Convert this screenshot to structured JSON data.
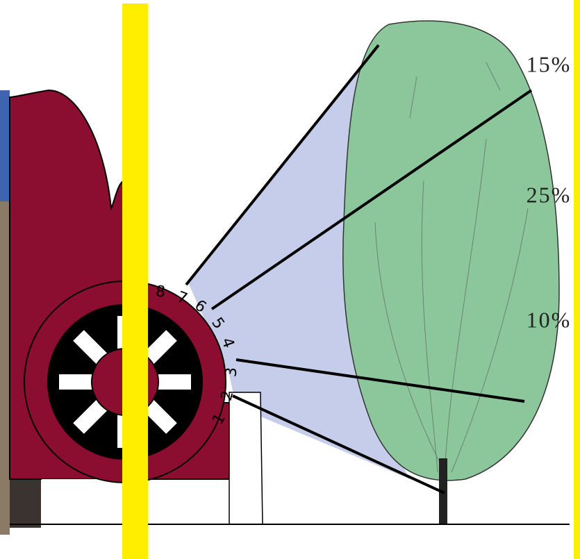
{
  "nozzles": [
    "1",
    "2",
    "3",
    "4",
    "5",
    "6",
    "7",
    "8"
  ],
  "zones": [
    "15%",
    "25%",
    "10%"
  ]
}
